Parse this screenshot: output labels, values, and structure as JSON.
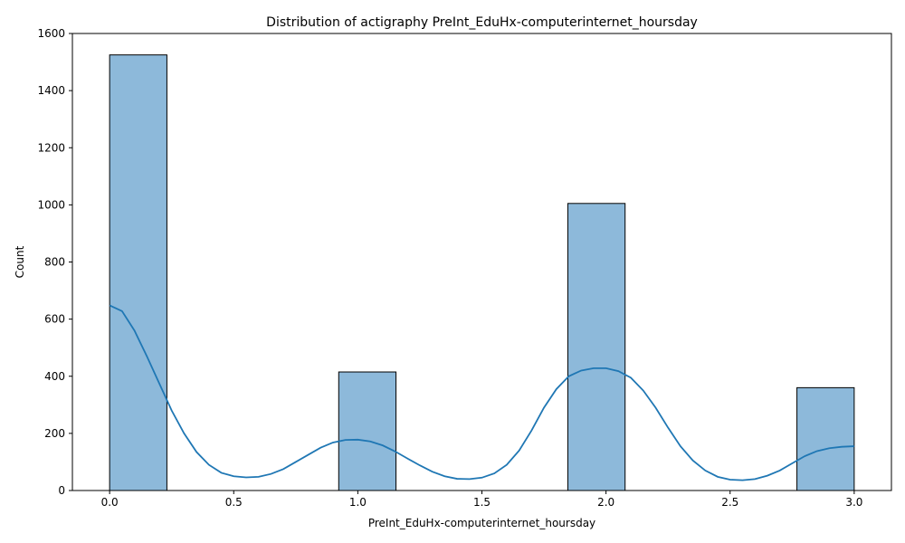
{
  "chart_data": {
    "type": "bar",
    "title": "Distribution of actigraphy PreInt_EduHx-computerinternet_hoursday",
    "xlabel": "PreInt_EduHx-computerinternet_hoursday",
    "ylabel": "Count",
    "xlim": [
      -0.15,
      3.15
    ],
    "ylim": [
      0,
      1600
    ],
    "xticks": [
      0.0,
      0.5,
      1.0,
      1.5,
      2.0,
      2.5,
      3.0
    ],
    "xtick_labels": [
      "0.0",
      "0.5",
      "1.0",
      "1.5",
      "2.0",
      "2.5",
      "3.0"
    ],
    "yticks": [
      0,
      200,
      400,
      600,
      800,
      1000,
      1200,
      1400,
      1600
    ],
    "ytick_labels": [
      "0",
      "200",
      "400",
      "600",
      "800",
      "1000",
      "1200",
      "1400",
      "1600"
    ],
    "bins": [
      {
        "x0": 0.0,
        "x1": 0.2308,
        "count": 1525
      },
      {
        "x0": 0.9231,
        "x1": 1.1538,
        "count": 415
      },
      {
        "x0": 1.8462,
        "x1": 2.0769,
        "count": 1005
      },
      {
        "x0": 2.7692,
        "x1": 3.0,
        "count": 360
      }
    ],
    "kde": {
      "x": [
        0.0,
        0.05,
        0.1,
        0.15,
        0.2,
        0.25,
        0.3,
        0.35,
        0.4,
        0.45,
        0.5,
        0.55,
        0.6,
        0.65,
        0.7,
        0.75,
        0.8,
        0.85,
        0.9,
        0.95,
        1.0,
        1.05,
        1.1,
        1.15,
        1.2,
        1.25,
        1.3,
        1.35,
        1.4,
        1.45,
        1.5,
        1.55,
        1.6,
        1.65,
        1.7,
        1.75,
        1.8,
        1.85,
        1.9,
        1.95,
        2.0,
        2.05,
        2.1,
        2.15,
        2.2,
        2.25,
        2.3,
        2.35,
        2.4,
        2.45,
        2.5,
        2.55,
        2.6,
        2.65,
        2.7,
        2.75,
        2.8,
        2.85,
        2.9,
        2.95,
        3.0
      ],
      "y": [
        648,
        628,
        560,
        470,
        375,
        280,
        200,
        135,
        90,
        62,
        50,
        46,
        48,
        58,
        75,
        100,
        125,
        150,
        168,
        177,
        178,
        172,
        158,
        137,
        112,
        88,
        66,
        50,
        41,
        40,
        45,
        60,
        90,
        140,
        210,
        290,
        355,
        400,
        420,
        428,
        428,
        418,
        395,
        350,
        290,
        220,
        155,
        105,
        70,
        48,
        38,
        36,
        40,
        52,
        70,
        95,
        120,
        138,
        148,
        153,
        155
      ]
    },
    "bar_color": "#8db9da",
    "line_color": "#1f77b4",
    "edge_color": "#000000",
    "grid": false,
    "legend": "none"
  }
}
